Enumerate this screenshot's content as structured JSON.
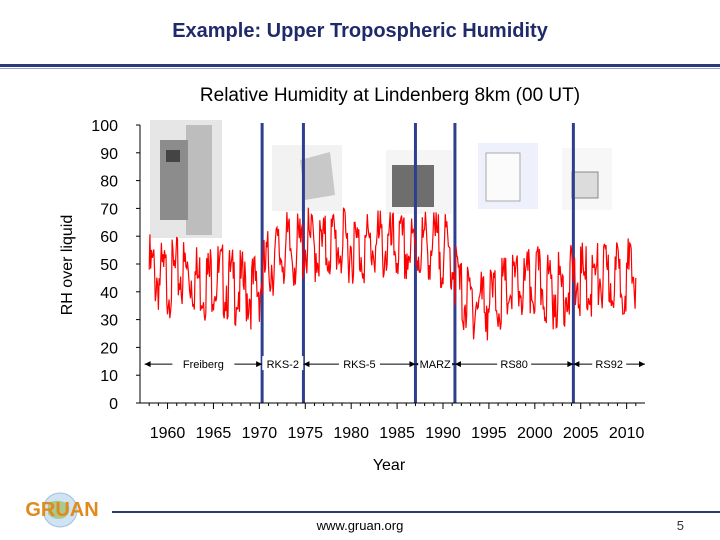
{
  "slide": {
    "title": "Example: Upper Tropospheric Humidity",
    "footer_url": "www.gruan.org",
    "page_number": "5",
    "logo_text": "GRUAN"
  },
  "chart_data": {
    "type": "line",
    "title": "Relative Humidity at Lindenberg 8km (00 UT)",
    "xlabel": "Year",
    "ylabel": "RH over liquid",
    "xlim": [
      1957,
      2012
    ],
    "ylim": [
      0,
      100
    ],
    "xticks": [
      1960,
      1965,
      1970,
      1975,
      1980,
      1985,
      1990,
      1995,
      2000,
      2005,
      2010
    ],
    "yticks": [
      0,
      10,
      20,
      30,
      40,
      50,
      60,
      70,
      80,
      90,
      100
    ],
    "grid": false,
    "line_color": "#ff0000",
    "boundary_color": "#2e3f8f",
    "sonde_change_years": [
      1970.3,
      1974.8,
      1987.0,
      1991.3,
      2004.2
    ],
    "eras": [
      {
        "label": "Freiberg",
        "start": 1957.5,
        "end": 1970.3
      },
      {
        "label": "RKS-2",
        "start": 1970.3,
        "end": 1974.8
      },
      {
        "label": "RKS-5",
        "start": 1974.8,
        "end": 1987.0
      },
      {
        "label": "MARZ",
        "start": 1987.0,
        "end": 1991.3
      },
      {
        "label": "RS80",
        "start": 1991.3,
        "end": 2004.2
      },
      {
        "label": "RS92",
        "start": 2004.2,
        "end": 2012
      }
    ],
    "series": [
      {
        "x": [
          1958,
          1959,
          1960,
          1961,
          1962,
          1963,
          1964,
          1965,
          1966,
          1967,
          1968,
          1969,
          1970,
          1971,
          1972,
          1973,
          1974,
          1975,
          1976,
          1977,
          1978,
          1979,
          1980,
          1981,
          1982,
          1983,
          1984,
          1985,
          1986,
          1987,
          1988,
          1989,
          1990,
          1991,
          1992,
          1993,
          1994,
          1995,
          1996,
          1997,
          1998,
          1999,
          2000,
          2001,
          2002,
          2003,
          2004,
          2005,
          2006,
          2007,
          2008,
          2009,
          2010,
          2011
        ],
        "values": [
          48,
          45,
          44,
          46,
          47,
          45,
          43,
          46,
          44,
          42,
          41,
          40,
          42,
          50,
          53,
          55,
          54,
          57,
          56,
          55,
          58,
          56,
          57,
          55,
          56,
          57,
          55,
          56,
          54,
          55,
          57,
          56,
          55,
          52,
          38,
          36,
          37,
          36,
          38,
          40,
          42,
          41,
          43,
          42,
          40,
          41,
          43,
          44,
          43,
          45,
          44,
          45,
          46,
          45
        ]
      }
    ]
  }
}
